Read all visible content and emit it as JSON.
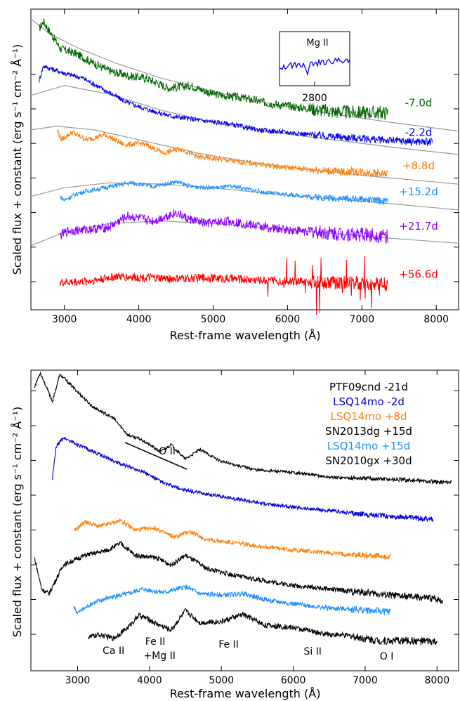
{
  "chart_data": [
    {
      "type": "line",
      "xlabel": "Rest-frame wavelength (Å)",
      "ylabel": "Scaled flux + constant (erg s⁻¹ cm⁻² Å⁻¹)",
      "xlim": [
        2550,
        8300
      ],
      "xticks": [
        "3000",
        "4000",
        "5000",
        "6000",
        "7000",
        "8000"
      ],
      "inset": {
        "label": "Mg II",
        "xtick": "2800",
        "color": "#0000ff"
      },
      "series": [
        {
          "name": "-7.0d",
          "color": "#006400",
          "x": [
            2660,
            2720,
            2800,
            2950,
            3150,
            3400,
            3600,
            3850,
            4100,
            4400,
            4700,
            5000,
            5400,
            5800,
            6200,
            6600,
            7000,
            7350
          ],
          "y": [
            11.4,
            11.7,
            11.3,
            10.6,
            10.4,
            10.0,
            9.7,
            9.5,
            9.4,
            9.0,
            9.1,
            8.75,
            8.6,
            8.35,
            8.2,
            8.05,
            8.0,
            8.0
          ]
        },
        {
          "name": "-2.2d",
          "color": "#0000ee",
          "x": [
            2660,
            2720,
            2800,
            3000,
            3250,
            3550,
            3850,
            4150,
            4450,
            4800,
            5200,
            5600,
            6000,
            6500,
            7000,
            7500,
            7950
          ],
          "y": [
            9.3,
            9.9,
            9.8,
            9.6,
            9.4,
            8.9,
            8.4,
            8.1,
            7.85,
            7.7,
            7.55,
            7.3,
            7.2,
            7.05,
            6.95,
            6.85,
            6.8
          ]
        },
        {
          "name": "+8.8d",
          "color": "#ff7f0e",
          "x": [
            2900,
            2960,
            3100,
            3300,
            3550,
            3800,
            4050,
            4350,
            4550,
            4800,
            5100,
            5500,
            5900,
            6300,
            6700,
            7000,
            7350
          ],
          "y": [
            7.3,
            6.9,
            7.2,
            6.9,
            7.1,
            6.7,
            6.75,
            6.35,
            6.55,
            6.2,
            6.1,
            5.95,
            5.8,
            5.7,
            5.6,
            5.6,
            5.5
          ]
        },
        {
          "name": "+15.2d",
          "color": "#1e90ff",
          "x": [
            2940,
            3000,
            3200,
            3450,
            3700,
            3900,
            4200,
            4500,
            4700,
            5000,
            5300,
            5700,
            6100,
            6500,
            6900,
            7350
          ],
          "y": [
            4.6,
            4.45,
            4.75,
            4.9,
            5.05,
            5.15,
            5.0,
            5.2,
            5.0,
            4.95,
            5.0,
            4.75,
            4.65,
            4.55,
            4.5,
            4.4
          ]
        },
        {
          "name": "+21.7d",
          "color": "#8b00ff",
          "x": [
            2940,
            3050,
            3300,
            3600,
            3850,
            4200,
            4500,
            4650,
            4900,
            5200,
            5500,
            5800,
            6200,
            6600,
            7000,
            7350
          ],
          "y": [
            3.0,
            3.2,
            3.25,
            3.35,
            3.8,
            3.6,
            3.95,
            3.7,
            3.5,
            3.6,
            3.45,
            3.3,
            3.2,
            3.1,
            3.05,
            3.0
          ]
        },
        {
          "name": "+56.6d",
          "color": "#ff0000",
          "x": [
            2940,
            3300,
            3700,
            4100,
            4500,
            4900,
            5300,
            5700,
            6100,
            6500,
            6900,
            7350
          ],
          "y": [
            1.1,
            1.15,
            1.35,
            1.3,
            1.25,
            1.3,
            1.25,
            1.2,
            1.15,
            1.1,
            1.1,
            1.05
          ]
        }
      ],
      "models": [
        {
          "x": [
            2550,
            2800,
            3200,
            3700,
            4300,
            5000,
            5800,
            6600,
            7400,
            8300
          ],
          "y": [
            11.8,
            11.2,
            10.6,
            10.0,
            9.4,
            8.85,
            8.35,
            7.95,
            7.6,
            7.25
          ]
        },
        {
          "x": [
            2550,
            3000,
            3600,
            4300,
            5000,
            5800,
            6600,
            7400,
            8300
          ],
          "y": [
            8.7,
            9.1,
            8.75,
            8.1,
            7.6,
            7.2,
            6.9,
            6.6,
            6.3
          ]
        },
        {
          "x": [
            2550,
            2900,
            3400,
            4000,
            4800,
            5600,
            6400,
            7200,
            8300
          ],
          "y": [
            7.3,
            7.45,
            7.3,
            6.9,
            6.35,
            5.95,
            5.65,
            5.4,
            5.1
          ]
        },
        {
          "x": [
            2550,
            3000,
            3600,
            4300,
            5000,
            5800,
            6600,
            7400,
            8300
          ],
          "y": [
            4.6,
            4.95,
            5.15,
            5.1,
            4.95,
            4.7,
            4.5,
            4.3,
            4.05
          ]
        },
        {
          "x": [
            2550,
            3000,
            3600,
            4300,
            5000,
            5800,
            6600,
            7400,
            8300
          ],
          "y": [
            2.6,
            3.15,
            3.5,
            3.6,
            3.5,
            3.3,
            3.1,
            2.9,
            2.7
          ]
        }
      ]
    },
    {
      "type": "line",
      "xlabel": "Rest-frame wavelength (Å)",
      "ylabel": "Scaled flux + constant (erg s⁻¹ cm⁻² Å⁻¹)",
      "xlim": [
        2350,
        8300
      ],
      "xticks": [
        "3000",
        "4000",
        "5000",
        "6000",
        "7000",
        "8000"
      ],
      "legend": [
        {
          "text": "PTF09cnd -21d",
          "color": "#000000"
        },
        {
          "text": "LSQ14mo -2d",
          "color": "#0000cd"
        },
        {
          "text": "LSQ14mo +8d",
          "color": "#ff7f0e"
        },
        {
          "text": "SN2013dg +15d",
          "color": "#000000"
        },
        {
          "text": "LSQ14mo +15d",
          "color": "#1e90ff"
        },
        {
          "text": "SN2010gx +30d",
          "color": "#000000"
        }
      ],
      "annotations": {
        "o2": "O II",
        "lines": [
          {
            "text": "Ca II",
            "x": 3500
          },
          {
            "text": "Fe II",
            "x": 4080
          },
          {
            "text": "+Mg II",
            "x": 4140
          },
          {
            "text": "Fe II",
            "x": 5100
          },
          {
            "text": "Si II",
            "x": 6270
          },
          {
            "text": "O I",
            "x": 7300
          }
        ]
      },
      "series": [
        {
          "name": "PTF09cnd -21d",
          "color": "#000000",
          "x": [
            2400,
            2480,
            2550,
            2650,
            2750,
            2800,
            3000,
            3200,
            3500,
            3700,
            3900,
            4150,
            4300,
            4500,
            4700,
            5000,
            5500,
            6000,
            6500,
            7000,
            7500,
            8000,
            8200
          ],
          "y": [
            12.3,
            12.9,
            12.4,
            11.7,
            12.8,
            12.7,
            12.1,
            11.5,
            11.0,
            10.3,
            10.1,
            9.6,
            9.9,
            9.3,
            9.7,
            9.2,
            8.85,
            8.75,
            8.55,
            8.5,
            8.45,
            8.35,
            8.35
          ]
        },
        {
          "name": "LSQ14mo -2d",
          "color": "#0000cd",
          "x": [
            2650,
            2700,
            2800,
            3000,
            3300,
            3600,
            3900,
            4200,
            4500,
            4800,
            5200,
            5600,
            6000,
            6500,
            7000,
            7500,
            7950
          ],
          "y": [
            8.5,
            9.8,
            10.2,
            9.9,
            9.5,
            9.1,
            8.8,
            8.3,
            8.0,
            7.85,
            7.65,
            7.45,
            7.3,
            7.15,
            7.0,
            6.9,
            6.8
          ]
        },
        {
          "name": "LSQ14mo +8d",
          "color": "#ff7f0e",
          "x": [
            2950,
            3100,
            3300,
            3600,
            3800,
            4050,
            4350,
            4550,
            4800,
            5100,
            5500,
            5900,
            6300,
            6700,
            7000,
            7350
          ],
          "y": [
            6.3,
            6.7,
            6.5,
            6.75,
            6.35,
            6.45,
            6.05,
            6.3,
            5.95,
            5.85,
            5.7,
            5.55,
            5.45,
            5.35,
            5.3,
            5.25
          ]
        },
        {
          "name": "SN2013dg +15d",
          "color": "#000000",
          "x": [
            2400,
            2500,
            2600,
            2800,
            3100,
            3400,
            3600,
            3800,
            4100,
            4300,
            4500,
            4800,
            5200,
            5600,
            6000,
            6500,
            7000,
            7500,
            8000,
            8080
          ],
          "y": [
            5.2,
            3.9,
            3.7,
            4.9,
            5.3,
            5.5,
            5.8,
            5.3,
            5.2,
            4.9,
            5.3,
            4.75,
            4.45,
            4.25,
            4.05,
            3.9,
            3.75,
            3.6,
            3.5,
            3.4
          ]
        },
        {
          "name": "LSQ14mo +15d",
          "color": "#1e90ff",
          "x": [
            2940,
            3000,
            3200,
            3450,
            3700,
            3900,
            4200,
            4500,
            4700,
            5000,
            5300,
            5700,
            6100,
            6500,
            6900,
            7350
          ],
          "y": [
            3.2,
            2.9,
            3.3,
            3.55,
            3.7,
            3.9,
            3.75,
            4.0,
            3.7,
            3.65,
            3.7,
            3.4,
            3.25,
            3.1,
            3.05,
            2.95
          ]
        },
        {
          "name": "SN2010gx +30d",
          "color": "#000000",
          "x": [
            3150,
            3300,
            3500,
            3700,
            3850,
            3950,
            4100,
            4300,
            4500,
            4700,
            5000,
            5300,
            5600,
            6000,
            6400,
            6800,
            7200,
            7600,
            8000
          ],
          "y": [
            1.9,
            2.0,
            1.85,
            2.3,
            2.8,
            2.7,
            2.45,
            2.2,
            3.0,
            2.5,
            2.55,
            2.85,
            2.4,
            2.3,
            2.05,
            1.95,
            1.75,
            1.75,
            1.7
          ]
        }
      ]
    }
  ]
}
